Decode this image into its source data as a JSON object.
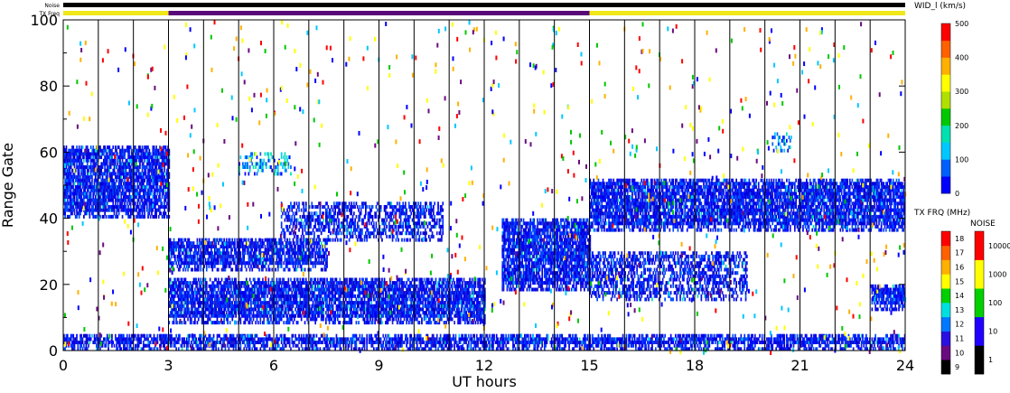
{
  "chart_data": {
    "type": "heatmap",
    "xlabel": "UT hours",
    "ylabel": "Range Gate",
    "xlim": [
      0,
      24
    ],
    "ylim": [
      0,
      100
    ],
    "x_ticks": [
      "0",
      "3",
      "6",
      "9",
      "12",
      "15",
      "18",
      "21",
      "24"
    ],
    "y_ticks": [
      "0",
      "20",
      "40",
      "60",
      "80",
      "100"
    ],
    "top_strips": [
      {
        "label": "Noise",
        "segments": [
          {
            "from": 0,
            "to": 24,
            "color": "#000000"
          }
        ]
      },
      {
        "label": "TX Freq",
        "segments": [
          {
            "from": 0,
            "to": 3,
            "color": "#f0e818"
          },
          {
            "from": 3,
            "to": 15,
            "color": "#5a0a78"
          },
          {
            "from": 15,
            "to": 24,
            "color": "#f0e818"
          }
        ]
      }
    ],
    "scan_boundaries_ut": [
      1,
      2,
      3,
      4,
      5,
      6,
      7,
      8,
      9,
      10,
      11,
      12,
      13,
      14,
      15,
      16,
      17,
      18,
      19,
      20,
      21,
      22,
      23
    ],
    "echo_bands": [
      {
        "from": 0,
        "to": 3,
        "gate_low": 40,
        "gate_high": 62,
        "intensity": "high"
      },
      {
        "from": 3,
        "to": 7.5,
        "gate_low": 24,
        "gate_high": 34,
        "intensity": "high"
      },
      {
        "from": 3,
        "to": 12,
        "gate_low": 8,
        "gate_high": 22,
        "intensity": "high"
      },
      {
        "from": 6.2,
        "to": 10.8,
        "gate_low": 33,
        "gate_high": 45,
        "intensity": "medium"
      },
      {
        "from": 5,
        "to": 6.5,
        "gate_low": 53,
        "gate_high": 60,
        "intensity": "low"
      },
      {
        "from": 12.5,
        "to": 15,
        "gate_low": 18,
        "gate_high": 40,
        "intensity": "high"
      },
      {
        "from": 15,
        "to": 24,
        "gate_low": 36,
        "gate_high": 52,
        "intensity": "high"
      },
      {
        "from": 15,
        "to": 19.5,
        "gate_low": 15,
        "gate_high": 30,
        "intensity": "medium"
      },
      {
        "from": 23,
        "to": 24,
        "gate_low": 12,
        "gate_high": 20,
        "intensity": "high"
      },
      {
        "from": 0,
        "to": 24,
        "gate_low": 0,
        "gate_high": 5,
        "intensity": "high"
      },
      {
        "from": 20.2,
        "to": 20.8,
        "gate_low": 60,
        "gate_high": 66,
        "intensity": "low"
      }
    ],
    "colorbars": [
      {
        "title": "WID_l (km/s)",
        "ticks": [
          "0",
          "100",
          "200",
          "300",
          "400",
          "500"
        ],
        "scale": "linear",
        "range": [
          0,
          500
        ],
        "colors": [
          "#0000ff",
          "#0060ff",
          "#00c8ff",
          "#00e0b0",
          "#00c800",
          "#b0e000",
          "#ffff00",
          "#ffb000",
          "#ff6000",
          "#ff0000"
        ]
      },
      {
        "title": "TX FRQ (MHz)",
        "ticks": [
          "9",
          "10",
          "11",
          "12",
          "13",
          "14",
          "15",
          "16",
          "17",
          "18"
        ],
        "scale": "linear",
        "range": [
          9,
          18
        ],
        "colors": [
          "#000000",
          "#6a0a80",
          "#2a10e0",
          "#0078ff",
          "#00e0e0",
          "#00d000",
          "#ffff00",
          "#ffb000",
          "#ff6000",
          "#ff0000"
        ]
      },
      {
        "title": "NOISE",
        "ticks": [
          "1",
          "10",
          "100",
          "1000",
          "10000"
        ],
        "scale": "log",
        "range": [
          1,
          100000
        ],
        "colors": [
          "#000000",
          "#2000ff",
          "#00d000",
          "#ffff00",
          "#ff0000"
        ]
      }
    ]
  }
}
